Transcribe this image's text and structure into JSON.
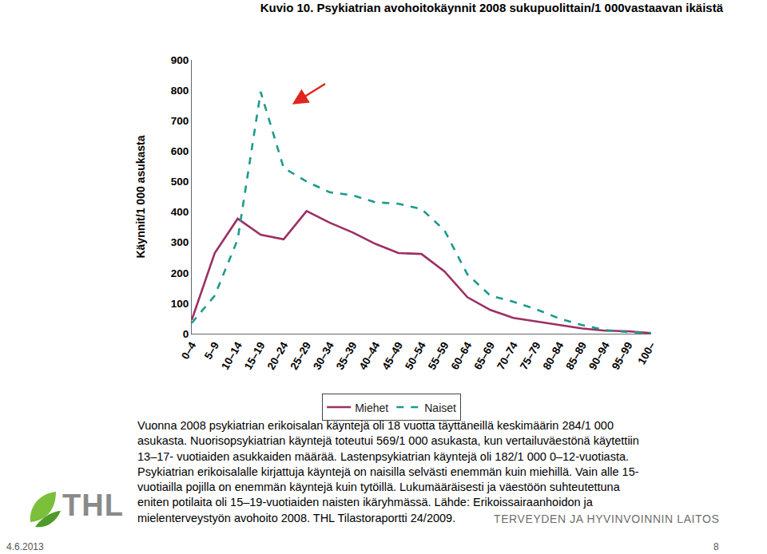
{
  "chart_data": {
    "type": "line",
    "title": "Kuvio 10. Psykiatrian avohoitokäynnit 2008 sukupuolittain/1 000vastaavan ikäistä",
    "ylabel": "Käynnit/1 000 asukasta",
    "categories": [
      "0–4",
      "5–9",
      "10–14",
      "15–19",
      "20–24",
      "25–29",
      "30–34",
      "35–39",
      "40–44",
      "45–49",
      "50–54",
      "55–59",
      "60–64",
      "65–69",
      "70–74",
      "75–79",
      "80–84",
      "85–89",
      "90–94",
      "95–99",
      "100–"
    ],
    "series": [
      {
        "name": "Miehet",
        "color": "#9c2f63",
        "line_style": "solid",
        "values": [
          45,
          265,
          378,
          325,
          310,
          403,
          365,
          333,
          295,
          265,
          262,
          205,
          120,
          78,
          52,
          40,
          28,
          17,
          10,
          8,
          2
        ]
      },
      {
        "name": "Naiset",
        "color": "#1b9a8c",
        "line_style": "dash",
        "values": [
          35,
          125,
          310,
          795,
          545,
          500,
          465,
          455,
          432,
          427,
          410,
          340,
          195,
          125,
          105,
          80,
          50,
          28,
          12,
          5,
          2
        ]
      }
    ],
    "ylim": [
      0,
      900
    ],
    "yticks": [
      0,
      100,
      200,
      300,
      400,
      500,
      600,
      700,
      800,
      900
    ],
    "grid": false,
    "legend": "bottom"
  },
  "slide": {
    "caption": [
      "Vuonna 2008 psykiatrian erikoisalan käyntejä oli 18 vuotta täyttäneillä keskimäärin 284/1 000",
      "asukasta. Nuorisopsykiatrian käyntejä toteutui 569/1 000 asukasta, kun vertailuväestönä käytettiin",
      "13–17- vuotiaiden asukkaiden määrää. Lastenpsykiatrian käyntejä oli 182/1 000 0–12-vuotiasta.",
      "Psykiatrian erikoisalalle kirjattuja käyntejä on naisilla selvästi enemmän kuin miehillä. Vain alle 15-",
      "vuotiailla pojilla on enemmän käyntejä kuin tytöillä. Lukumääräisesti ja väestöön suhteutettuna",
      "eniten potilaita oli 15–19-vuotiaiden naisten ikäryhmässä. Lähde: Erikoissairaanhoidon ja",
      "mielenterveystyön avohoito 2008. THL Tilastoraportti 24/2009."
    ],
    "logo": "THL",
    "institution": "TERVEYDEN JA HYVINVOINNIN LAITOS",
    "date": "4.6.2013",
    "page": "8"
  }
}
